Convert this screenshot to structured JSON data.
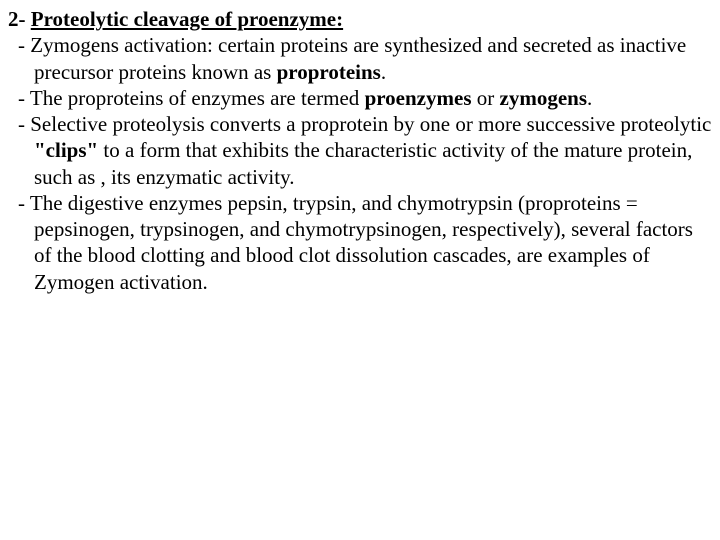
{
  "heading": {
    "number": "2- ",
    "text": "Proteolytic cleavage of proenzyme:"
  },
  "item1": {
    "lead": "- Zymogens activation: certain proteins are synthesized and secreted as inactive precursor proteins known as ",
    "bold1": "proproteins",
    "tail": "."
  },
  "item2": {
    "lead": "- The proproteins of enzymes are termed ",
    "bold1": "proenzymes",
    "mid": " or ",
    "bold2": "zymogens",
    "tail": "."
  },
  "item3": {
    "lead": "- Selective proteolysis converts a proprotein by one or more successive proteolytic ",
    "bold1": "\"clips\"",
    "tail": " to a form that exhibits the characteristic activity of the mature protein, such as , its enzymatic activity."
  },
  "item4": {
    "text": "- The digestive enzymes pepsin, trypsin, and chymotrypsin (proproteins = pepsinogen, trypsinogen, and chymotrypsinogen, respectively), several factors of the blood clotting and blood clot dissolution cascades, are examples of Zymogen activation."
  }
}
